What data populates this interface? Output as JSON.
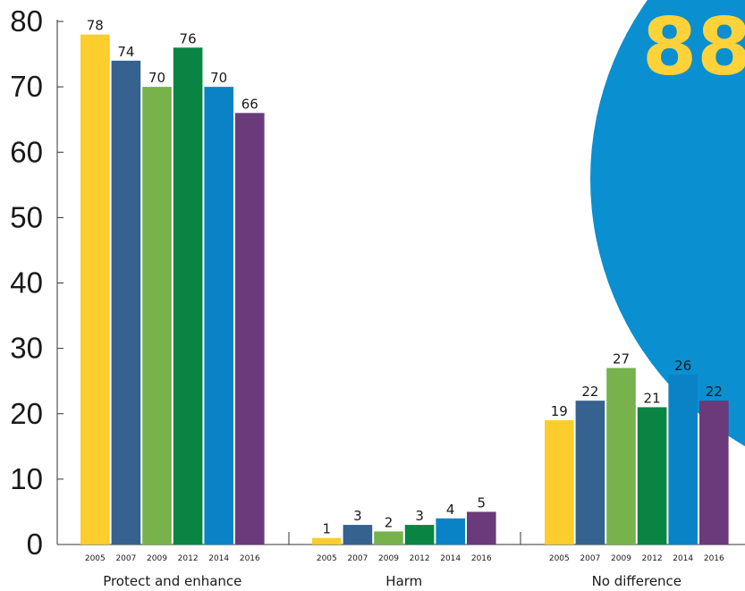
{
  "callout": {
    "text": "88",
    "circle_color": "#0a8fd0",
    "text_color": "#ffd23a"
  },
  "chart_data": {
    "type": "bar",
    "ylim": [
      0,
      80
    ],
    "y_ticks": [
      0,
      10,
      20,
      30,
      40,
      50,
      60,
      70,
      80
    ],
    "categories": [
      "Protect and enhance",
      "Harm",
      "No difference"
    ],
    "series": [
      {
        "name": "2005",
        "color": "#fdcc2d",
        "values": [
          78,
          1,
          19
        ]
      },
      {
        "name": "2007",
        "color": "#35628f",
        "values": [
          74,
          3,
          22
        ]
      },
      {
        "name": "2009",
        "color": "#77b24d",
        "values": [
          70,
          2,
          27
        ]
      },
      {
        "name": "2012",
        "color": "#0a8443",
        "values": [
          76,
          3,
          21
        ]
      },
      {
        "name": "2014",
        "color": "#0a83c6",
        "values": [
          70,
          4,
          26
        ]
      },
      {
        "name": "2016",
        "color": "#6a3a7a",
        "values": [
          66,
          5,
          22
        ]
      }
    ]
  }
}
